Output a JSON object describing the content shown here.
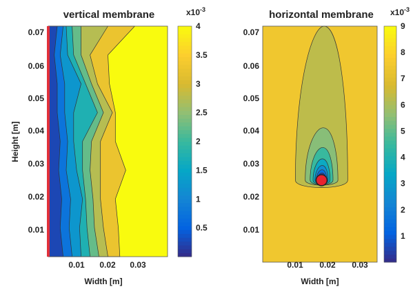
{
  "chart_data": [
    {
      "type": "contour",
      "title": "vertical membrane",
      "xlabel": "Width [m]",
      "ylabel": "Height [m]",
      "xlim": [
        0,
        0.04
      ],
      "ylim": [
        0,
        0.072
      ],
      "xticks": [
        0.01,
        0.02,
        0.03
      ],
      "xtick_labels": [
        "0.01",
        "0.02",
        "0.03"
      ],
      "yticks": [
        0.01,
        0.02,
        0.03,
        0.04,
        0.05,
        0.06,
        0.07
      ],
      "ytick_labels": [
        "0.01",
        "0.02",
        "0.03",
        "0.04",
        "0.05",
        "0.06",
        "0.07"
      ],
      "colorbar": {
        "exponent_label": "x10",
        "exponent_power": "-3",
        "min": 0,
        "max": 4,
        "ticks": [
          0.5,
          1,
          1.5,
          2,
          2.5,
          3,
          3.5,
          4
        ],
        "tick_labels": [
          "0.5",
          "1",
          "1.5",
          "2",
          "2.5",
          "3",
          "3.5",
          "4"
        ]
      },
      "level_boundaries": [
        {
          "level": 0.5,
          "x": [
            0.005,
            0.004,
            0.0045,
            0.0035,
            0.004,
            0.003,
            0.003,
            0.002,
            0.003
          ]
        },
        {
          "level": 1.0,
          "x": [
            0.008,
            0.007,
            0.0075,
            0.006,
            0.0065,
            0.0055,
            0.0055,
            0.004,
            0.005
          ]
        },
        {
          "level": 1.5,
          "x": [
            0.011,
            0.0105,
            0.0115,
            0.0095,
            0.0085,
            0.0085,
            0.011,
            0.0065,
            0.006
          ]
        },
        {
          "level": 2.0,
          "x": [
            0.014,
            0.013,
            0.0125,
            0.0115,
            0.0115,
            0.0165,
            0.0125,
            0.0085,
            0.008
          ]
        },
        {
          "level": 2.5,
          "x": [
            0.017,
            0.0155,
            0.015,
            0.014,
            0.0145,
            0.0185,
            0.0145,
            0.011,
            0.011
          ]
        },
        {
          "level": 3.0,
          "x": [
            0.02,
            0.0185,
            0.0175,
            0.0175,
            0.0175,
            0.0215,
            0.0165,
            0.014,
            0.02
          ]
        },
        {
          "level": 3.5,
          "x": [
            0.024,
            0.0235,
            0.0225,
            0.026,
            0.0225,
            0.0225,
            0.0205,
            0.02,
            0.029
          ]
        }
      ],
      "level_boundary_heights": [
        0.0,
        0.009,
        0.018,
        0.027,
        0.036,
        0.045,
        0.054,
        0.063,
        0.072
      ],
      "marker": {
        "type": "red vertical line at x=0"
      }
    },
    {
      "type": "contour",
      "title": "horizontal membrane",
      "xlabel": "Width [m]",
      "ylabel": "",
      "xlim": [
        0,
        0.035
      ],
      "ylim": [
        0,
        0.072
      ],
      "xticks": [
        0.01,
        0.02,
        0.03
      ],
      "xtick_labels": [
        "0.01",
        "0.02",
        "0.03"
      ],
      "yticks": [
        0.01,
        0.02,
        0.03,
        0.04,
        0.05,
        0.06,
        0.07
      ],
      "ytick_labels": [
        "0.01",
        "0.02",
        "0.03",
        "0.04",
        "0.05",
        "0.06",
        "0.07"
      ],
      "colorbar": {
        "exponent_label": "x10",
        "exponent_power": "-3",
        "min": 0,
        "max": 9,
        "ticks": [
          1,
          2,
          3,
          4,
          5,
          6,
          7,
          8,
          9
        ],
        "tick_labels": [
          "1",
          "2",
          "3",
          "4",
          "5",
          "6",
          "7",
          "8",
          "9"
        ]
      },
      "source": {
        "x": 0.018,
        "y": 0.025
      },
      "marker": {
        "type": "red circle at source"
      }
    }
  ]
}
